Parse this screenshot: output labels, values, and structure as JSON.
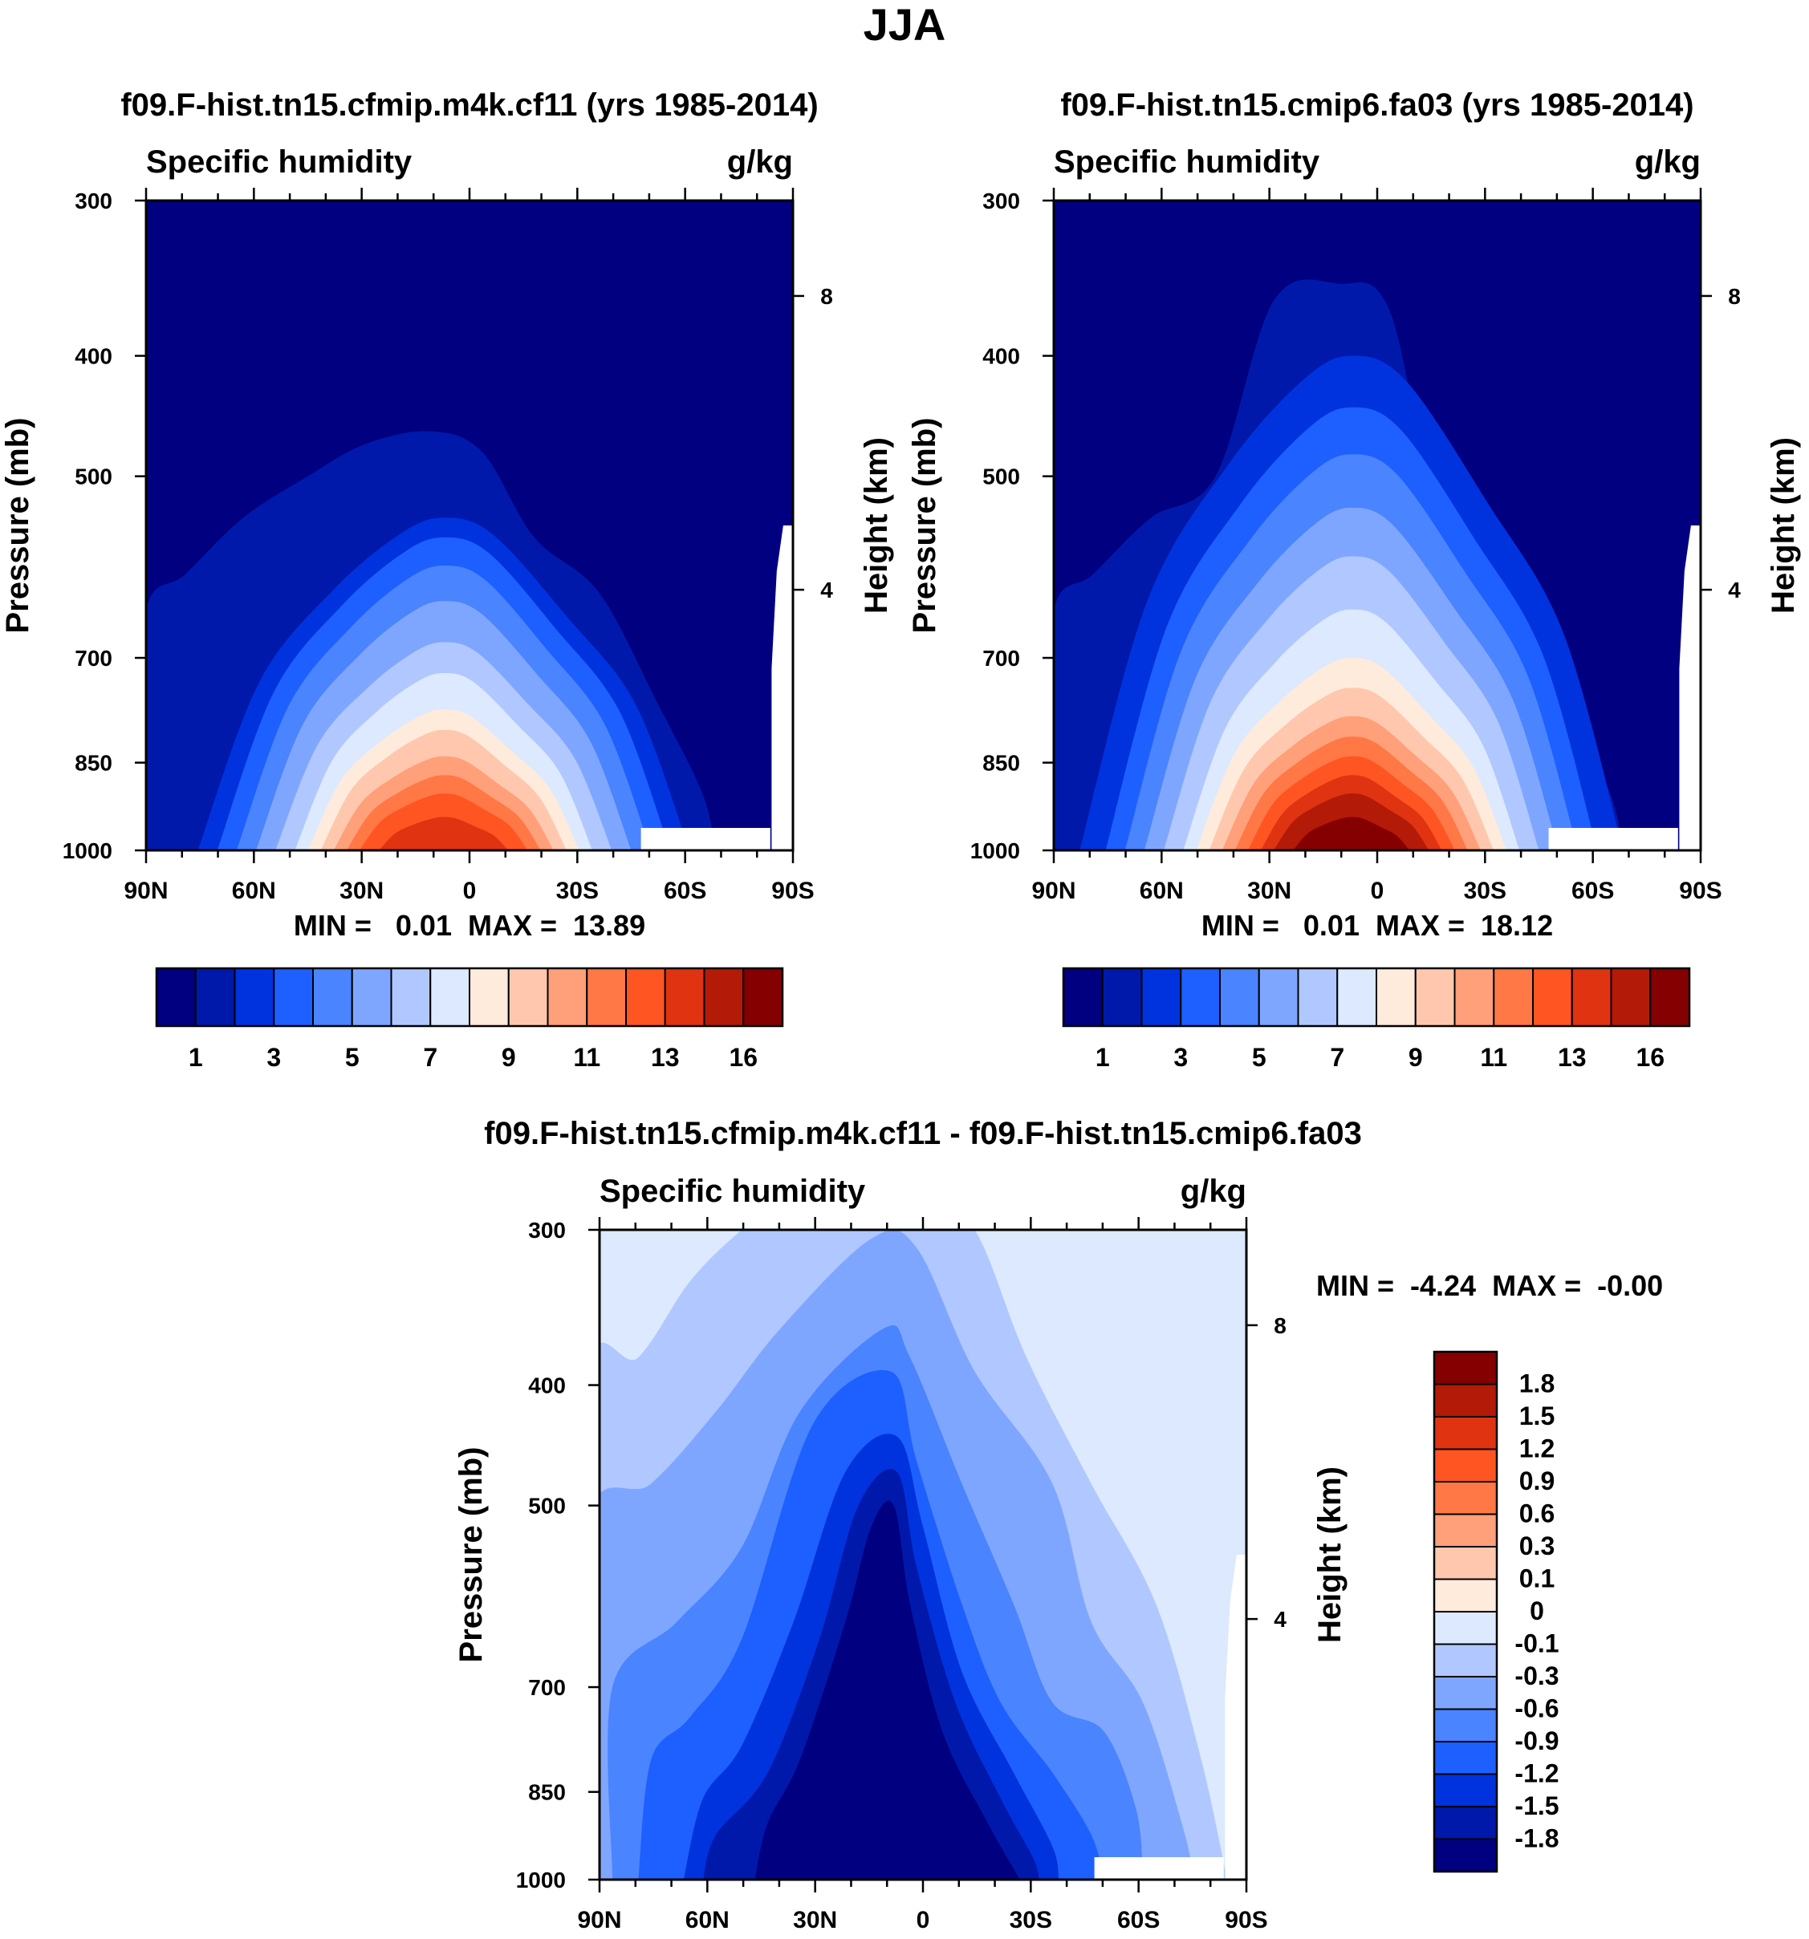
{
  "page_title": "JJA",
  "palette": {
    "abs": [
      "#000080",
      "#0019AB",
      "#0033DD",
      "#1E5FFF",
      "#4A84FF",
      "#7FA6FF",
      "#B0C8FF",
      "#DCE9FF",
      "#FFEBDC",
      "#FFC8AE",
      "#FFA07A",
      "#FF7845",
      "#FF5522",
      "#E03311",
      "#B31A07",
      "#850000"
    ],
    "diff": [
      "#000080",
      "#0019AB",
      "#0033DD",
      "#1E5FFF",
      "#4A84FF",
      "#7FA6FF",
      "#B0C8FF",
      "#DCE9FF",
      "#FFEBDC",
      "#FFC8AE",
      "#FFA07A",
      "#FF7845",
      "#FF5522",
      "#E03311",
      "#B31A07",
      "#850000"
    ]
  },
  "panels": {
    "p1": {
      "title": "f09.F-hist.tn15.cfmip.m4k.cf11 (yrs 1985-2014)",
      "left_label": "Specific humidity",
      "units": "g/kg",
      "ylabel": "Pressure (mb)",
      "ylabel_right": "Height (km)",
      "minmax": "MIN =   0.01  MAX =  13.89"
    },
    "p2": {
      "title": "f09.F-hist.tn15.cmip6.fa03 (yrs 1985-2014)",
      "left_label": "Specific humidity",
      "units": "g/kg",
      "ylabel": "Pressure (mb)",
      "ylabel_right": "Height (km)",
      "minmax": "MIN =   0.01  MAX =  18.12"
    },
    "p3": {
      "title": "f09.F-hist.tn15.cfmip.m4k.cf11 - f09.F-hist.tn15.cmip6.fa03",
      "left_label": "Specific humidity",
      "units": "g/kg",
      "ylabel": "Pressure (mb)",
      "ylabel_right": "Height (km)",
      "minmax": "MIN =  -4.24  MAX =  -0.00"
    }
  },
  "axes": {
    "x_ticks": [
      "90N",
      "60N",
      "30N",
      "0",
      "30S",
      "60S",
      "90S"
    ],
    "p_ticks": [
      "300",
      "400",
      "500",
      "700",
      "850",
      "1000"
    ],
    "h_ticks": [
      "8",
      "4"
    ]
  },
  "colorbar_abs": {
    "labels": [
      "1",
      "3",
      "5",
      "7",
      "9",
      "11",
      "13",
      "16"
    ]
  },
  "colorbar_diff": {
    "labels": [
      "1.8",
      "1.5",
      "1.2",
      "0.9",
      "0.6",
      "0.3",
      "0.1",
      "0",
      "-0.1",
      "-0.3",
      "-0.6",
      "-0.9",
      "-1.2",
      "-1.5",
      "-1.8"
    ]
  },
  "chart_data": [
    {
      "type": "heatmap",
      "title": "f09.F-hist.tn15.cfmip.m4k.cf11 (yrs 1985-2014)",
      "variable": "Specific humidity",
      "units": "g/kg",
      "xlabel": "",
      "ylabel": "Pressure (mb)",
      "ylabel_right": "Height (km)",
      "x_range": [
        90,
        -90
      ],
      "y_range_mb": [
        1000,
        300
      ],
      "levels": [
        1,
        2,
        3,
        4,
        5,
        6,
        7,
        8,
        9,
        10,
        11,
        12,
        13,
        14,
        16
      ],
      "min": 0.01,
      "max": 13.89,
      "contour_peak_heights_mb": {
        "1": 460,
        "2": 520,
        "3": 570,
        "4": 600,
        "5": 650,
        "6": 700,
        "7": 760,
        "8": 800,
        "9": 830,
        "10": 860,
        "11": 890,
        "12": 920,
        "13": 950
      }
    },
    {
      "type": "heatmap",
      "title": "f09.F-hist.tn15.cmip6.fa03 (yrs 1985-2014)",
      "variable": "Specific humidity",
      "units": "g/kg",
      "xlabel": "",
      "ylabel": "Pressure (mb)",
      "ylabel_right": "Height (km)",
      "x_range": [
        90,
        -90
      ],
      "y_range_mb": [
        1000,
        300
      ],
      "levels": [
        1,
        2,
        3,
        4,
        5,
        6,
        7,
        8,
        9,
        10,
        11,
        12,
        13,
        14,
        16
      ],
      "min": 0.01,
      "max": 18.12,
      "contour_peak_heights_mb": {
        "1": 360,
        "2": 400,
        "3": 450,
        "4": 490,
        "5": 540,
        "6": 590,
        "7": 640,
        "8": 690,
        "9": 730,
        "10": 770,
        "11": 800,
        "12": 830,
        "13": 860,
        "14": 900,
        "16": 950
      }
    },
    {
      "type": "heatmap",
      "title": "f09.F-hist.tn15.cfmip.m4k.cf11 - f09.F-hist.tn15.cmip6.fa03",
      "variable": "Specific humidity",
      "units": "g/kg",
      "xlabel": "",
      "ylabel": "Pressure (mb)",
      "ylabel_right": "Height (km)",
      "x_range": [
        90,
        -90
      ],
      "y_range_mb": [
        1000,
        300
      ],
      "levels": [
        -1.8,
        -1.5,
        -1.2,
        -0.9,
        -0.6,
        -0.3,
        -0.1,
        0,
        0.1,
        0.3,
        0.6,
        0.9,
        1.2,
        1.5,
        1.8
      ],
      "min": -4.24,
      "max": -0.0
    }
  ]
}
